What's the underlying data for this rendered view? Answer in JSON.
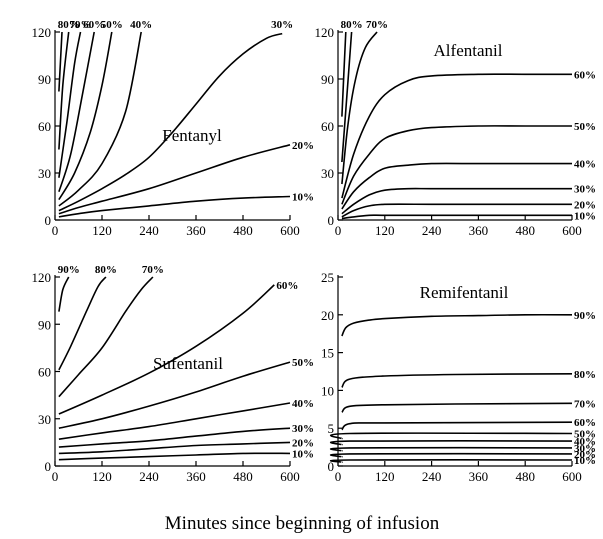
{
  "figure": {
    "xlabel": "Minutes since beginning of infusion"
  },
  "chart_data": [
    {
      "type": "line",
      "title": "Fentanyl",
      "xlim": [
        0,
        600
      ],
      "ylim": [
        0,
        120
      ],
      "x_ticks": [
        "0",
        "120",
        "240",
        "360",
        "480",
        "600"
      ],
      "y_ticks": [
        "0",
        "30",
        "60",
        "90",
        "120"
      ],
      "series": [
        {
          "name": "10%",
          "x": [
            10,
            60,
            120,
            240,
            360,
            480,
            600
          ],
          "y": [
            2,
            4,
            6,
            9,
            12,
            14,
            15
          ]
        },
        {
          "name": "20%",
          "x": [
            10,
            60,
            120,
            240,
            360,
            480,
            600
          ],
          "y": [
            4,
            8,
            12,
            20,
            30,
            40,
            48
          ]
        },
        {
          "name": "30%",
          "x": [
            10,
            60,
            120,
            180,
            240,
            300,
            360,
            420,
            480,
            540,
            580
          ],
          "y": [
            6,
            12,
            20,
            29,
            40,
            56,
            74,
            92,
            106,
            116,
            119
          ]
        },
        {
          "name": "40%",
          "x": [
            10,
            60,
            120,
            180,
            220
          ],
          "y": [
            9,
            19,
            36,
            69,
            120
          ]
        },
        {
          "name": "50%",
          "x": [
            10,
            50,
            90,
            120,
            145
          ],
          "y": [
            13,
            30,
            56,
            86,
            120
          ]
        },
        {
          "name": "60%",
          "x": [
            10,
            40,
            70,
            100
          ],
          "y": [
            18,
            42,
            80,
            120
          ]
        },
        {
          "name": "70%",
          "x": [
            10,
            30,
            50,
            65
          ],
          "y": [
            27,
            62,
            100,
            120
          ]
        },
        {
          "name": "80%",
          "x": [
            10,
            20,
            35
          ],
          "y": [
            45,
            86,
            120
          ]
        },
        {
          "name": "",
          "x": [
            10,
            18
          ],
          "y": [
            82,
            120
          ]
        }
      ]
    },
    {
      "type": "line",
      "title": "Alfentanil",
      "xlim": [
        0,
        600
      ],
      "ylim": [
        0,
        120
      ],
      "x_ticks": [
        "0",
        "120",
        "240",
        "360",
        "480",
        "600"
      ],
      "y_ticks": [
        "0",
        "30",
        "60",
        "90",
        "120"
      ],
      "series": [
        {
          "name": "10%",
          "x": [
            10,
            40,
            80,
            120,
            240,
            360,
            480,
            600
          ],
          "y": [
            1,
            2,
            3,
            3,
            3,
            3,
            3,
            3
          ]
        },
        {
          "name": "20%",
          "x": [
            10,
            40,
            80,
            120,
            240,
            360,
            480,
            600
          ],
          "y": [
            2,
            6,
            9,
            10,
            10,
            10,
            10,
            10
          ]
        },
        {
          "name": "30%",
          "x": [
            10,
            40,
            80,
            120,
            180,
            240,
            360,
            480,
            600
          ],
          "y": [
            4,
            10,
            16,
            19,
            20,
            20,
            20,
            20,
            20
          ]
        },
        {
          "name": "40%",
          "x": [
            10,
            40,
            80,
            120,
            180,
            240,
            360,
            480,
            600
          ],
          "y": [
            7,
            18,
            27,
            33,
            35,
            36,
            36,
            36,
            36
          ]
        },
        {
          "name": "50%",
          "x": [
            10,
            40,
            80,
            120,
            180,
            240,
            360,
            480,
            600
          ],
          "y": [
            10,
            28,
            42,
            52,
            57,
            59,
            60,
            60,
            60
          ]
        },
        {
          "name": "60%",
          "x": [
            10,
            40,
            80,
            120,
            180,
            240,
            360,
            480,
            600
          ],
          "y": [
            14,
            42,
            66,
            80,
            89,
            92,
            93,
            93,
            93
          ]
        },
        {
          "name": "70%",
          "x": [
            10,
            25,
            45,
            70,
            100
          ],
          "y": [
            23,
            60,
            90,
            110,
            120
          ]
        },
        {
          "name": "80%",
          "x": [
            10,
            20,
            35
          ],
          "y": [
            37,
            70,
            120
          ]
        },
        {
          "name": "",
          "x": [
            10,
            20
          ],
          "y": [
            66,
            120
          ]
        }
      ]
    },
    {
      "type": "line",
      "title": "Sufentanil",
      "xlim": [
        0,
        600
      ],
      "ylim": [
        0,
        120
      ],
      "x_ticks": [
        "0",
        "120",
        "240",
        "360",
        "480",
        "600"
      ],
      "y_ticks": [
        "0",
        "30",
        "60",
        "90",
        "120"
      ],
      "series": [
        {
          "name": "10%",
          "x": [
            10,
            120,
            240,
            360,
            480,
            600
          ],
          "y": [
            4,
            5,
            6,
            7,
            8,
            8
          ]
        },
        {
          "name": "20%",
          "x": [
            10,
            120,
            240,
            360,
            480,
            600
          ],
          "y": [
            8,
            9,
            11,
            13,
            14,
            15
          ]
        },
        {
          "name": "30%",
          "x": [
            10,
            120,
            240,
            360,
            480,
            600
          ],
          "y": [
            12,
            14,
            16,
            19,
            22,
            24
          ]
        },
        {
          "name": "40%",
          "x": [
            10,
            120,
            240,
            360,
            480,
            600
          ],
          "y": [
            17,
            21,
            25,
            30,
            35,
            40
          ]
        },
        {
          "name": "50%",
          "x": [
            10,
            120,
            240,
            360,
            480,
            600
          ],
          "y": [
            24,
            30,
            38,
            47,
            57,
            66
          ]
        },
        {
          "name": "60%",
          "x": [
            10,
            120,
            240,
            360,
            480,
            560
          ],
          "y": [
            33,
            45,
            59,
            76,
            97,
            115
          ]
        },
        {
          "name": "70%",
          "x": [
            10,
            60,
            120,
            180,
            220,
            250
          ],
          "y": [
            44,
            58,
            75,
            98,
            112,
            120
          ]
        },
        {
          "name": "80%",
          "x": [
            10,
            40,
            80,
            110,
            130
          ],
          "y": [
            61,
            76,
            98,
            114,
            120
          ]
        },
        {
          "name": "90%",
          "x": [
            10,
            20,
            35
          ],
          "y": [
            98,
            112,
            120
          ]
        }
      ]
    },
    {
      "type": "line",
      "title": "Remifentanil",
      "xlim": [
        0,
        600
      ],
      "ylim": [
        0,
        25
      ],
      "x_ticks": [
        "0",
        "120",
        "240",
        "360",
        "480",
        "600"
      ],
      "y_ticks": [
        "0",
        "5",
        "10",
        "15",
        "20",
        "25"
      ],
      "series": [
        {
          "name": "10%",
          "x": [
            10,
            30,
            600
          ],
          "y": [
            0.5,
            0.8,
            0.8
          ]
        },
        {
          "name": "20%",
          "x": [
            10,
            30,
            600
          ],
          "y": [
            1.2,
            1.6,
            1.6
          ]
        },
        {
          "name": "30%",
          "x": [
            10,
            30,
            600
          ],
          "y": [
            2.0,
            2.4,
            2.4
          ]
        },
        {
          "name": "40%",
          "x": [
            10,
            30,
            600
          ],
          "y": [
            2.8,
            3.3,
            3.3
          ]
        },
        {
          "name": "50%",
          "x": [
            10,
            30,
            600
          ],
          "y": [
            3.6,
            4.3,
            4.3
          ]
        },
        {
          "name": "60%",
          "x": [
            10,
            30,
            120,
            600
          ],
          "y": [
            4.8,
            5.6,
            5.7,
            5.8
          ]
        },
        {
          "name": "70%",
          "x": [
            10,
            30,
            120,
            300,
            600
          ],
          "y": [
            7.1,
            7.9,
            8.1,
            8.2,
            8.3
          ]
        },
        {
          "name": "80%",
          "x": [
            10,
            30,
            120,
            300,
            600
          ],
          "y": [
            10.4,
            11.5,
            11.9,
            12.1,
            12.2
          ]
        },
        {
          "name": "90%",
          "x": [
            10,
            20,
            40,
            80,
            120,
            240,
            360,
            480,
            600
          ],
          "y": [
            17.2,
            18.3,
            18.9,
            19.3,
            19.5,
            19.8,
            19.9,
            20.0,
            20.0
          ]
        }
      ]
    }
  ]
}
